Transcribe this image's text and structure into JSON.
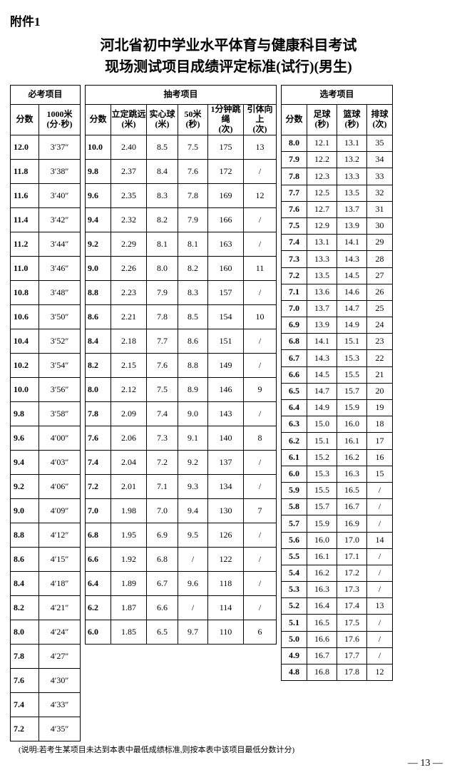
{
  "attachment_label": "附件1",
  "title_line1": "河北省初中学业水平体育与健康科目考试",
  "title_line2": "现场测试项目成绩评定标准(试行)(男生)",
  "note": "(说明:若考生某项目未达到本表中最低成绩标准,则按本表中该项目最低分数计分)",
  "page_number": "— 13 —",
  "groups": {
    "mandatory": "必考项目",
    "draw": "抽考项目",
    "elective": "选考项目"
  },
  "mandatory": {
    "headers": [
      "分数",
      "1000米\n(分·秒)"
    ],
    "rows": [
      [
        "12.0",
        "3′37″"
      ],
      [
        "11.8",
        "3′38″"
      ],
      [
        "11.6",
        "3′40″"
      ],
      [
        "11.4",
        "3′42″"
      ],
      [
        "11.2",
        "3′44″"
      ],
      [
        "11.0",
        "3′46″"
      ],
      [
        "10.8",
        "3′48″"
      ],
      [
        "10.6",
        "3′50″"
      ],
      [
        "10.4",
        "3′52″"
      ],
      [
        "10.2",
        "3′54″"
      ],
      [
        "10.0",
        "3′56″"
      ],
      [
        "9.8",
        "3′58″"
      ],
      [
        "9.6",
        "4′00″"
      ],
      [
        "9.4",
        "4′03″"
      ],
      [
        "9.2",
        "4′06″"
      ],
      [
        "9.0",
        "4′09″"
      ],
      [
        "8.8",
        "4′12″"
      ],
      [
        "8.6",
        "4′15″"
      ],
      [
        "8.4",
        "4′18″"
      ],
      [
        "8.2",
        "4′21″"
      ],
      [
        "8.0",
        "4′24″"
      ],
      [
        "7.8",
        "4′27″"
      ],
      [
        "7.6",
        "4′30″"
      ],
      [
        "7.4",
        "4′33″"
      ],
      [
        "7.2",
        "4′35″"
      ]
    ]
  },
  "draw": {
    "headers": [
      "分数",
      "立定跳远\n(米)",
      "实心球\n(米)",
      "50米\n(秒)",
      "1分钟跳绳\n(次)",
      "引体向上\n(次)"
    ],
    "rows": [
      [
        "10.0",
        "2.40",
        "8.5",
        "7.5",
        "175",
        "13"
      ],
      [
        "9.8",
        "2.37",
        "8.4",
        "7.6",
        "172",
        "/"
      ],
      [
        "9.6",
        "2.35",
        "8.3",
        "7.8",
        "169",
        "12"
      ],
      [
        "9.4",
        "2.32",
        "8.2",
        "7.9",
        "166",
        "/"
      ],
      [
        "9.2",
        "2.29",
        "8.1",
        "8.1",
        "163",
        "/"
      ],
      [
        "9.0",
        "2.26",
        "8.0",
        "8.2",
        "160",
        "11"
      ],
      [
        "8.8",
        "2.23",
        "7.9",
        "8.3",
        "157",
        "/"
      ],
      [
        "8.6",
        "2.21",
        "7.8",
        "8.5",
        "154",
        "10"
      ],
      [
        "8.4",
        "2.18",
        "7.7",
        "8.6",
        "151",
        "/"
      ],
      [
        "8.2",
        "2.15",
        "7.6",
        "8.8",
        "149",
        "/"
      ],
      [
        "8.0",
        "2.12",
        "7.5",
        "8.9",
        "146",
        "9"
      ],
      [
        "7.8",
        "2.09",
        "7.4",
        "9.0",
        "143",
        "/"
      ],
      [
        "7.6",
        "2.06",
        "7.3",
        "9.1",
        "140",
        "8"
      ],
      [
        "7.4",
        "2.04",
        "7.2",
        "9.2",
        "137",
        "/"
      ],
      [
        "7.2",
        "2.01",
        "7.1",
        "9.3",
        "134",
        "/"
      ],
      [
        "7.0",
        "1.98",
        "7.0",
        "9.4",
        "130",
        "7"
      ],
      [
        "6.8",
        "1.95",
        "6.9",
        "9.5",
        "126",
        "/"
      ],
      [
        "6.6",
        "1.92",
        "6.8",
        "/",
        "122",
        "/"
      ],
      [
        "6.4",
        "1.89",
        "6.7",
        "9.6",
        "118",
        "/"
      ],
      [
        "6.2",
        "1.87",
        "6.6",
        "/",
        "114",
        "/"
      ],
      [
        "6.0",
        "1.85",
        "6.5",
        "9.7",
        "110",
        "6"
      ]
    ]
  },
  "elective": {
    "headers": [
      "分数",
      "足球\n(秒)",
      "篮球\n(秒)",
      "排球\n(次)"
    ],
    "rows": [
      [
        "8.0",
        "12.1",
        "13.1",
        "35"
      ],
      [
        "7.9",
        "12.2",
        "13.2",
        "34"
      ],
      [
        "7.8",
        "12.3",
        "13.3",
        "33"
      ],
      [
        "7.7",
        "12.5",
        "13.5",
        "32"
      ],
      [
        "7.6",
        "12.7",
        "13.7",
        "31"
      ],
      [
        "7.5",
        "12.9",
        "13.9",
        "30"
      ],
      [
        "7.4",
        "13.1",
        "14.1",
        "29"
      ],
      [
        "7.3",
        "13.3",
        "14.3",
        "28"
      ],
      [
        "7.2",
        "13.5",
        "14.5",
        "27"
      ],
      [
        "7.1",
        "13.6",
        "14.6",
        "26"
      ],
      [
        "7.0",
        "13.7",
        "14.7",
        "25"
      ],
      [
        "6.9",
        "13.9",
        "14.9",
        "24"
      ],
      [
        "6.8",
        "14.1",
        "15.1",
        "23"
      ],
      [
        "6.7",
        "14.3",
        "15.3",
        "22"
      ],
      [
        "6.6",
        "14.5",
        "15.5",
        "21"
      ],
      [
        "6.5",
        "14.7",
        "15.7",
        "20"
      ],
      [
        "6.4",
        "14.9",
        "15.9",
        "19"
      ],
      [
        "6.3",
        "15.0",
        "16.0",
        "18"
      ],
      [
        "6.2",
        "15.1",
        "16.1",
        "17"
      ],
      [
        "6.1",
        "15.2",
        "16.2",
        "16"
      ],
      [
        "6.0",
        "15.3",
        "16.3",
        "15"
      ],
      [
        "5.9",
        "15.5",
        "16.5",
        "/"
      ],
      [
        "5.8",
        "15.7",
        "16.7",
        "/"
      ],
      [
        "5.7",
        "15.9",
        "16.9",
        "/"
      ],
      [
        "5.6",
        "16.0",
        "17.0",
        "14"
      ],
      [
        "5.5",
        "16.1",
        "17.1",
        "/"
      ],
      [
        "5.4",
        "16.2",
        "17.2",
        "/"
      ],
      [
        "5.3",
        "16.3",
        "17.3",
        "/"
      ],
      [
        "5.2",
        "16.4",
        "17.4",
        "13"
      ],
      [
        "5.1",
        "16.5",
        "17.5",
        "/"
      ],
      [
        "5.0",
        "16.6",
        "17.6",
        "/"
      ],
      [
        "4.9",
        "16.7",
        "17.7",
        "/"
      ],
      [
        "4.8",
        "16.8",
        "17.8",
        "12"
      ]
    ]
  }
}
